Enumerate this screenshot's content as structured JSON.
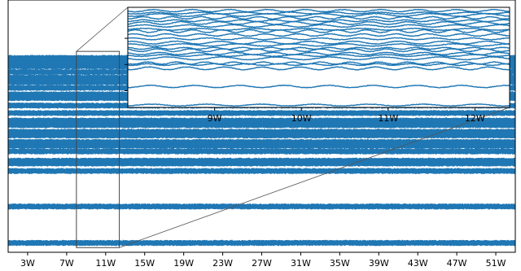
{
  "chart_data": {
    "type": "line",
    "title": "",
    "xlabel": "",
    "ylabel": "",
    "x_unit": "week",
    "xlim": [
      1.0,
      53.0
    ],
    "ylim": [
      -1.0,
      26.0
    ],
    "x_ticks": [
      {
        "week": 3,
        "label": "3W"
      },
      {
        "week": 7,
        "label": "7W"
      },
      {
        "week": 11,
        "label": "11W"
      },
      {
        "week": 15,
        "label": "15W"
      },
      {
        "week": 19,
        "label": "19W"
      },
      {
        "week": 23,
        "label": "23W"
      },
      {
        "week": 27,
        "label": "27W"
      },
      {
        "week": 31,
        "label": "31W"
      },
      {
        "week": 35,
        "label": "35W"
      },
      {
        "week": 39,
        "label": "39W"
      },
      {
        "week": 43,
        "label": "43W"
      },
      {
        "week": 47,
        "label": "47W"
      },
      {
        "week": 51,
        "label": "51W"
      }
    ],
    "series_levels": [
      0.0,
      3.9,
      7.7,
      8.5,
      8.8,
      9.8,
      10.4,
      10.8,
      11.5,
      11.9,
      12.6,
      13.1,
      13.9,
      14.7,
      15.5,
      15.9,
      16.6,
      17.2,
      17.7,
      18.3,
      18.9,
      19.3,
      19.8
    ],
    "series_color": "#1f77b4",
    "inset": {
      "xlim": [
        8.0,
        12.4
      ],
      "ylim": [
        -0.5,
        20.5
      ],
      "x_ticks": [
        {
          "week": 9,
          "label": "9W"
        },
        {
          "week": 10,
          "label": "10W"
        },
        {
          "week": 11,
          "label": "11W"
        },
        {
          "week": 12,
          "label": "12W"
        }
      ]
    },
    "grid": false,
    "legend": "none"
  }
}
